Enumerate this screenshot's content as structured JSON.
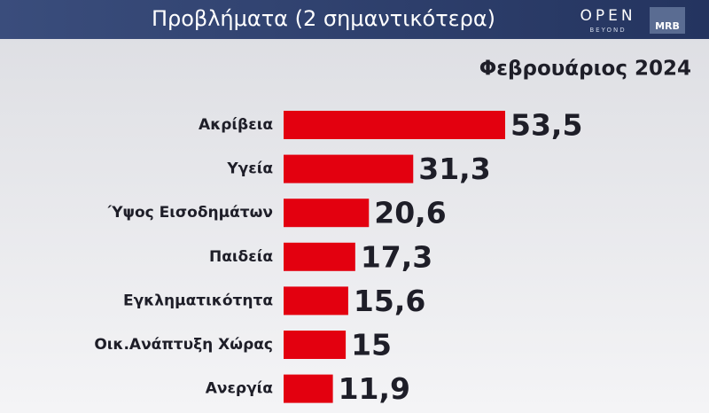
{
  "chart_data": {
    "type": "bar",
    "orientation": "horizontal",
    "title": "Προβλήματα (2 σημαντικότερα)",
    "subtitle": "Φεβρουάριος 2024",
    "categories": [
      "Ακρίβεια",
      "Υγεία",
      "Ύψος Εισοδημάτων",
      "Παιδεία",
      "Εγκληματικότητα",
      "Οικ.Ανάπτυξη Χώρας",
      "Ανεργία"
    ],
    "values": [
      53.5,
      31.3,
      20.6,
      17.3,
      15.6,
      15,
      11.9
    ],
    "value_labels": [
      "53,5",
      "31,3",
      "20,6",
      "17,3",
      "15,6",
      "15",
      "11,9"
    ],
    "color": "#e3000f"
  },
  "brand": {
    "open": "OPEN",
    "open_sub": "BEYOND",
    "mrb": "MRB"
  }
}
